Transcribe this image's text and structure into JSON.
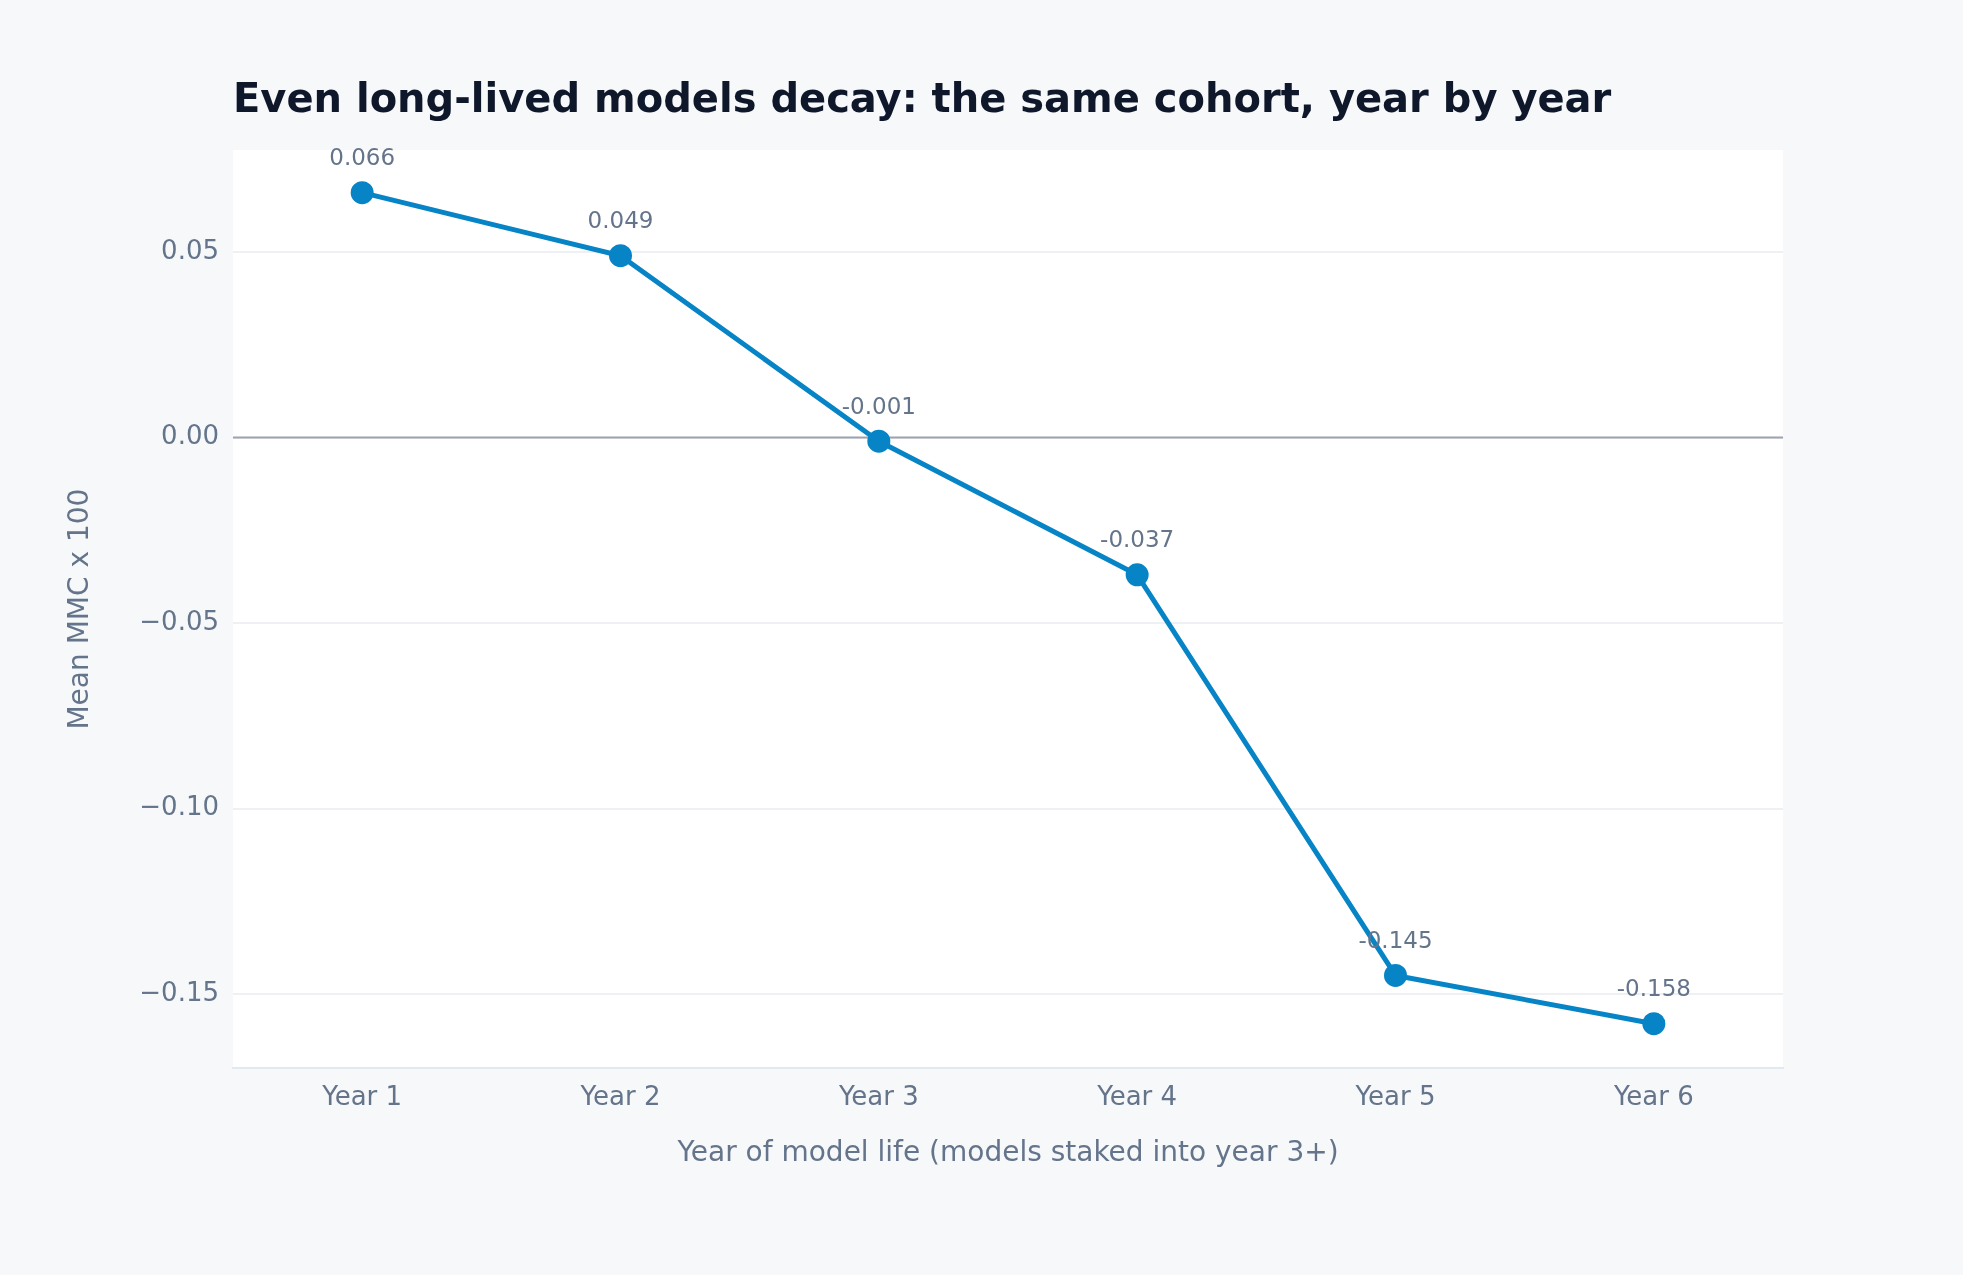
{
  "chart_data": {
    "type": "line",
    "title": "Even long-lived models decay: the same cohort, year by year",
    "xlabel": "Year of model life (models staked into year 3+)",
    "ylabel": "Mean MMC x 100",
    "categories": [
      "Year 1",
      "Year 2",
      "Year 3",
      "Year 4",
      "Year 5",
      "Year 6"
    ],
    "series": [
      {
        "color": "#0784c6",
        "values": [
          0.066,
          0.049,
          -0.001,
          -0.037,
          -0.145,
          -0.158
        ]
      }
    ],
    "ylim": [
      -0.17,
      0.0775
    ],
    "yticks": [
      {
        "value": -0.15,
        "label": "−0.15"
      },
      {
        "value": -0.1,
        "label": "−0.10"
      },
      {
        "value": -0.05,
        "label": "−0.05"
      },
      {
        "value": 0,
        "label": "0.00"
      },
      0.05
    ],
    "ref_lines": [
      {
        "axis": "y",
        "value": 0,
        "color": "#9ca3af"
      }
    ],
    "grid": "y",
    "marker": "circle",
    "line_style": "solid",
    "data_labels": true,
    "legend": false
  }
}
